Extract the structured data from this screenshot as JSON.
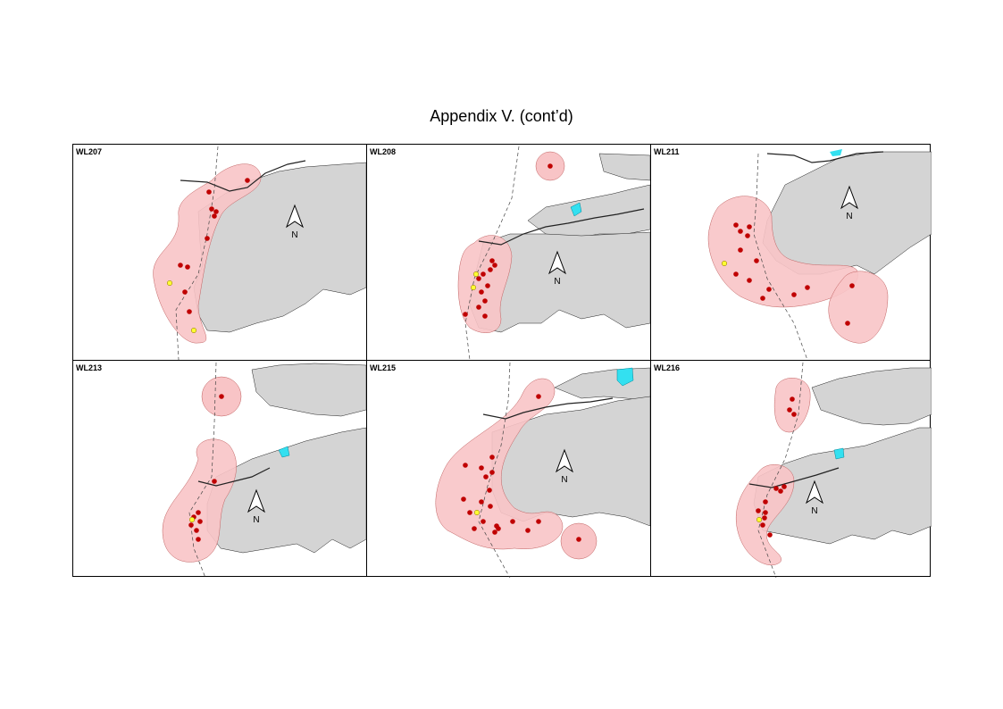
{
  "page": {
    "title": "Appendix V.  (cont’d)"
  },
  "north_label": "N",
  "colors": {
    "land": "#d4d4d4",
    "range": "#f8c4c6",
    "point_red": "#c00000",
    "point_yellow": "#ffff33",
    "water": "#33e0f0"
  },
  "panels": [
    {
      "id": "WL207"
    },
    {
      "id": "WL208"
    },
    {
      "id": "WL211"
    },
    {
      "id": "WL213"
    },
    {
      "id": "WL215"
    },
    {
      "id": "WL216"
    }
  ]
}
